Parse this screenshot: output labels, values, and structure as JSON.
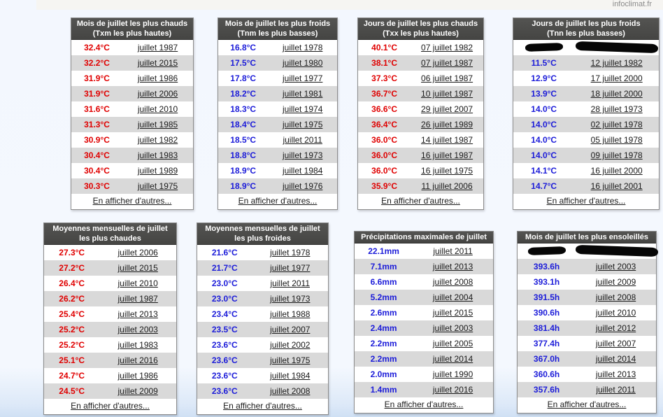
{
  "page": {
    "site_label": "infoclimat.fr"
  },
  "labels": {
    "show_more": "En afficher d'autres..."
  },
  "colors": {
    "warm_value": "#e00000",
    "cold_value": "#1c1cd9",
    "header_bg": "#4a4a48",
    "row_alt": "#d9d9d9",
    "link": "#1a1a1a",
    "page_bg": "#f3f7fe"
  },
  "tables": [
    {
      "name": "mois-juillet-plus-chauds",
      "title_lines": [
        "Mois de juillet les plus chauds",
        "(Txm les plus hautes)"
      ],
      "value_color": "#e00000",
      "rows": [
        {
          "value": "32.4°C",
          "date": "juillet 1987"
        },
        {
          "value": "32.2°C",
          "date": "juillet 2015"
        },
        {
          "value": "31.9°C",
          "date": "juillet 1986"
        },
        {
          "value": "31.9°C",
          "date": "juillet 2006"
        },
        {
          "value": "31.6°C",
          "date": "juillet 2010"
        },
        {
          "value": "31.3°C",
          "date": "juillet 1985"
        },
        {
          "value": "30.9°C",
          "date": "juillet 1982"
        },
        {
          "value": "30.4°C",
          "date": "juillet 1983"
        },
        {
          "value": "30.4°C",
          "date": "juillet 1989"
        },
        {
          "value": "30.3°C",
          "date": "juillet 1975"
        }
      ]
    },
    {
      "name": "mois-juillet-plus-froids",
      "title_lines": [
        "Mois de juillet les plus froids",
        "(Tnm les plus basses)"
      ],
      "value_color": "#1c1cd9",
      "rows": [
        {
          "value": "16.8°C",
          "date": "juillet 1978"
        },
        {
          "value": "17.5°C",
          "date": "juillet 1980"
        },
        {
          "value": "17.8°C",
          "date": "juillet 1977"
        },
        {
          "value": "18.2°C",
          "date": "juillet 1981"
        },
        {
          "value": "18.3°C",
          "date": "juillet 1974"
        },
        {
          "value": "18.4°C",
          "date": "juillet 1975"
        },
        {
          "value": "18.5°C",
          "date": "juillet 2011"
        },
        {
          "value": "18.8°C",
          "date": "juillet 1973"
        },
        {
          "value": "18.9°C",
          "date": "juillet 1984"
        },
        {
          "value": "18.9°C",
          "date": "juillet 1976"
        }
      ]
    },
    {
      "name": "jours-juillet-plus-chauds",
      "title_lines": [
        "Jours de juillet les plus chauds",
        "(Txx les plus hautes)"
      ],
      "value_color": "#e00000",
      "rows": [
        {
          "value": "40.1°C",
          "date": "07 juillet 1982"
        },
        {
          "value": "38.1°C",
          "date": "07 juillet 1987"
        },
        {
          "value": "37.3°C",
          "date": "06 juillet 1987"
        },
        {
          "value": "36.7°C",
          "date": "10 juillet 1987"
        },
        {
          "value": "36.6°C",
          "date": "29 juillet 2007"
        },
        {
          "value": "36.4°C",
          "date": "26 juillet 1989"
        },
        {
          "value": "36.0°C",
          "date": "14 juillet 1987"
        },
        {
          "value": "36.0°C",
          "date": "16 juillet 1987"
        },
        {
          "value": "36.0°C",
          "date": "16 juillet 1975"
        },
        {
          "value": "35.9°C",
          "date": "11 juillet 2006"
        }
      ]
    },
    {
      "name": "jours-juillet-plus-froids",
      "title_lines": [
        "Jours de juillet les plus froids",
        "(Tnn les plus basses)"
      ],
      "value_color": "#1c1cd9",
      "rows": [
        {
          "redacted": true,
          "value": "",
          "date": ""
        },
        {
          "value": "11.5°C",
          "date": "12 juillet 1982"
        },
        {
          "value": "12.9°C",
          "date": "17 juillet 2000"
        },
        {
          "value": "13.9°C",
          "date": "18 juillet 2000"
        },
        {
          "value": "14.0°C",
          "date": "28 juillet 1973"
        },
        {
          "value": "14.0°C",
          "date": "02 juillet 1978"
        },
        {
          "value": "14.0°C",
          "date": "05 juillet 1978"
        },
        {
          "value": "14.0°C",
          "date": "09 juillet 1978"
        },
        {
          "value": "14.1°C",
          "date": "16 juillet 2000"
        },
        {
          "value": "14.7°C",
          "date": "16 juillet 2001"
        }
      ]
    },
    {
      "name": "moyennes-mensuelles-plus-chaudes",
      "title_lines": [
        "Moyennes mensuelles de juillet",
        "les plus chaudes"
      ],
      "value_color": "#e00000",
      "rows": [
        {
          "value": "27.3°C",
          "date": "juillet 2006"
        },
        {
          "value": "27.2°C",
          "date": "juillet 2015"
        },
        {
          "value": "26.4°C",
          "date": "juillet 2010"
        },
        {
          "value": "26.2°C",
          "date": "juillet 1987"
        },
        {
          "value": "25.4°C",
          "date": "juillet 2013"
        },
        {
          "value": "25.2°C",
          "date": "juillet 2003"
        },
        {
          "value": "25.2°C",
          "date": "juillet 1983"
        },
        {
          "value": "25.1°C",
          "date": "juillet 2016"
        },
        {
          "value": "24.7°C",
          "date": "juillet 1986"
        },
        {
          "value": "24.5°C",
          "date": "juillet 2009"
        }
      ]
    },
    {
      "name": "moyennes-mensuelles-plus-froides",
      "title_lines": [
        "Moyennes mensuelles de juillet",
        "les plus froides"
      ],
      "value_color": "#1c1cd9",
      "rows": [
        {
          "value": "21.6°C",
          "date": "juillet 1978"
        },
        {
          "value": "21.7°C",
          "date": "juillet 1977"
        },
        {
          "value": "23.0°C",
          "date": "juillet 2011"
        },
        {
          "value": "23.0°C",
          "date": "juillet 1973"
        },
        {
          "value": "23.4°C",
          "date": "juillet 1988"
        },
        {
          "value": "23.5°C",
          "date": "juillet 2007"
        },
        {
          "value": "23.6°C",
          "date": "juillet 2002"
        },
        {
          "value": "23.6°C",
          "date": "juillet 1975"
        },
        {
          "value": "23.6°C",
          "date": "juillet 1984"
        },
        {
          "value": "23.6°C",
          "date": "juillet 2008"
        }
      ]
    },
    {
      "name": "precipitations-maximales",
      "title_lines": [
        "Précipitations maximales de juillet"
      ],
      "value_color": "#1c1cd9",
      "rows": [
        {
          "value": "22.1mm",
          "date": "juillet 2011"
        },
        {
          "value": "7.1mm",
          "date": "juillet 2013"
        },
        {
          "value": "6.6mm",
          "date": "juillet 2008"
        },
        {
          "value": "5.2mm",
          "date": "juillet 2004"
        },
        {
          "value": "2.6mm",
          "date": "juillet 2015"
        },
        {
          "value": "2.4mm",
          "date": "juillet 2003"
        },
        {
          "value": "2.2mm",
          "date": "juillet 2005"
        },
        {
          "value": "2.2mm",
          "date": "juillet 2014"
        },
        {
          "value": "2.0mm",
          "date": "juillet 1990"
        },
        {
          "value": "1.4mm",
          "date": "juillet 2016"
        }
      ]
    },
    {
      "name": "mois-juillet-plus-ensoleilles",
      "title_lines": [
        "Mois de juillet les plus ensoleillés"
      ],
      "value_color": "#1c1cd9",
      "rows": [
        {
          "redacted": true,
          "value": "",
          "date": ""
        },
        {
          "value": "393.6h",
          "date": "juillet 2003"
        },
        {
          "value": "393.1h",
          "date": "juillet 2009"
        },
        {
          "value": "391.5h",
          "date": "juillet 2008"
        },
        {
          "value": "390.6h",
          "date": "juillet 2010"
        },
        {
          "value": "381.4h",
          "date": "juillet 2012"
        },
        {
          "value": "377.4h",
          "date": "juillet 2007"
        },
        {
          "value": "367.0h",
          "date": "juillet 2014"
        },
        {
          "value": "360.6h",
          "date": "juillet 2013"
        },
        {
          "value": "357.6h",
          "date": "juillet 2011"
        }
      ]
    }
  ]
}
